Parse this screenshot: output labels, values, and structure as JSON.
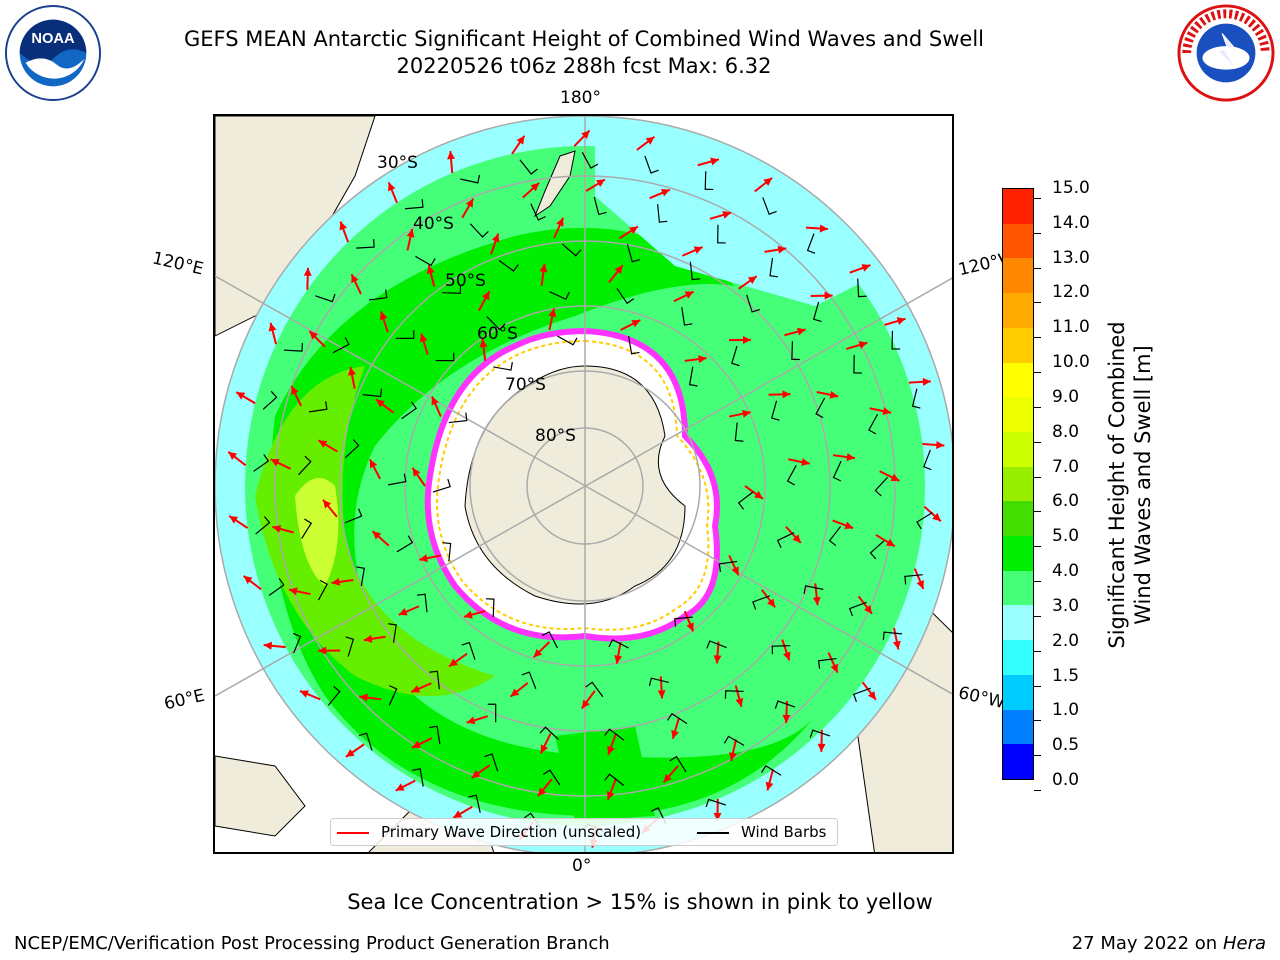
{
  "title_line1": "GEFS MEAN Antarctic Significant Height of Combined Wind Waves and Swell",
  "title_line2": "20220526 t06z 288h fcst   Max: 6.32",
  "longitude_labels": {
    "top": "180°",
    "bottom": "0°",
    "upper_left": "120°E",
    "upper_right": "120°W",
    "lower_left": "60°E",
    "lower_right": "60°W"
  },
  "latitude_labels": [
    "30°S",
    "40°S",
    "50°S",
    "60°S",
    "70°S",
    "80°S"
  ],
  "legend": {
    "primary_wave": "Primary Wave Direction (unscaled)",
    "wind_barbs": "Wind Barbs",
    "primary_wave_color": "#ff0000",
    "wind_barbs_color": "#000000"
  },
  "colorbar": {
    "label": "Significant Height of Combined Wind Waves and Swell [m]",
    "label_line1": "Significant Height of Combined",
    "label_line2": "Wind Waves and Swell [m]",
    "ticks": [
      "0.0",
      "0.5",
      "1.0",
      "1.5",
      "2.0",
      "3.0",
      "4.0",
      "5.0",
      "6.0",
      "7.0",
      "8.0",
      "9.0",
      "10.0",
      "11.0",
      "12.0",
      "13.0",
      "14.0",
      "15.0"
    ],
    "colors": [
      "#0000ff",
      "#0080ff",
      "#00ccff",
      "#33ffff",
      "#99ffff",
      "#44ff77",
      "#00ee00",
      "#44dd00",
      "#99ee00",
      "#ccff00",
      "#eeff00",
      "#ffff00",
      "#ffcc00",
      "#ffaa00",
      "#ff8800",
      "#ff5500",
      "#ff2200"
    ]
  },
  "note": "Sea Ice Concentration > 15% is shown in pink to yellow",
  "footer_left": "NCEP/EMC/Verification Post Processing Product Generation Branch",
  "footer_right_prefix": "27 May 2022 on",
  "footer_right_host": "Hera",
  "logos": {
    "left": "noaa-logo",
    "right": "nws-logo"
  }
}
